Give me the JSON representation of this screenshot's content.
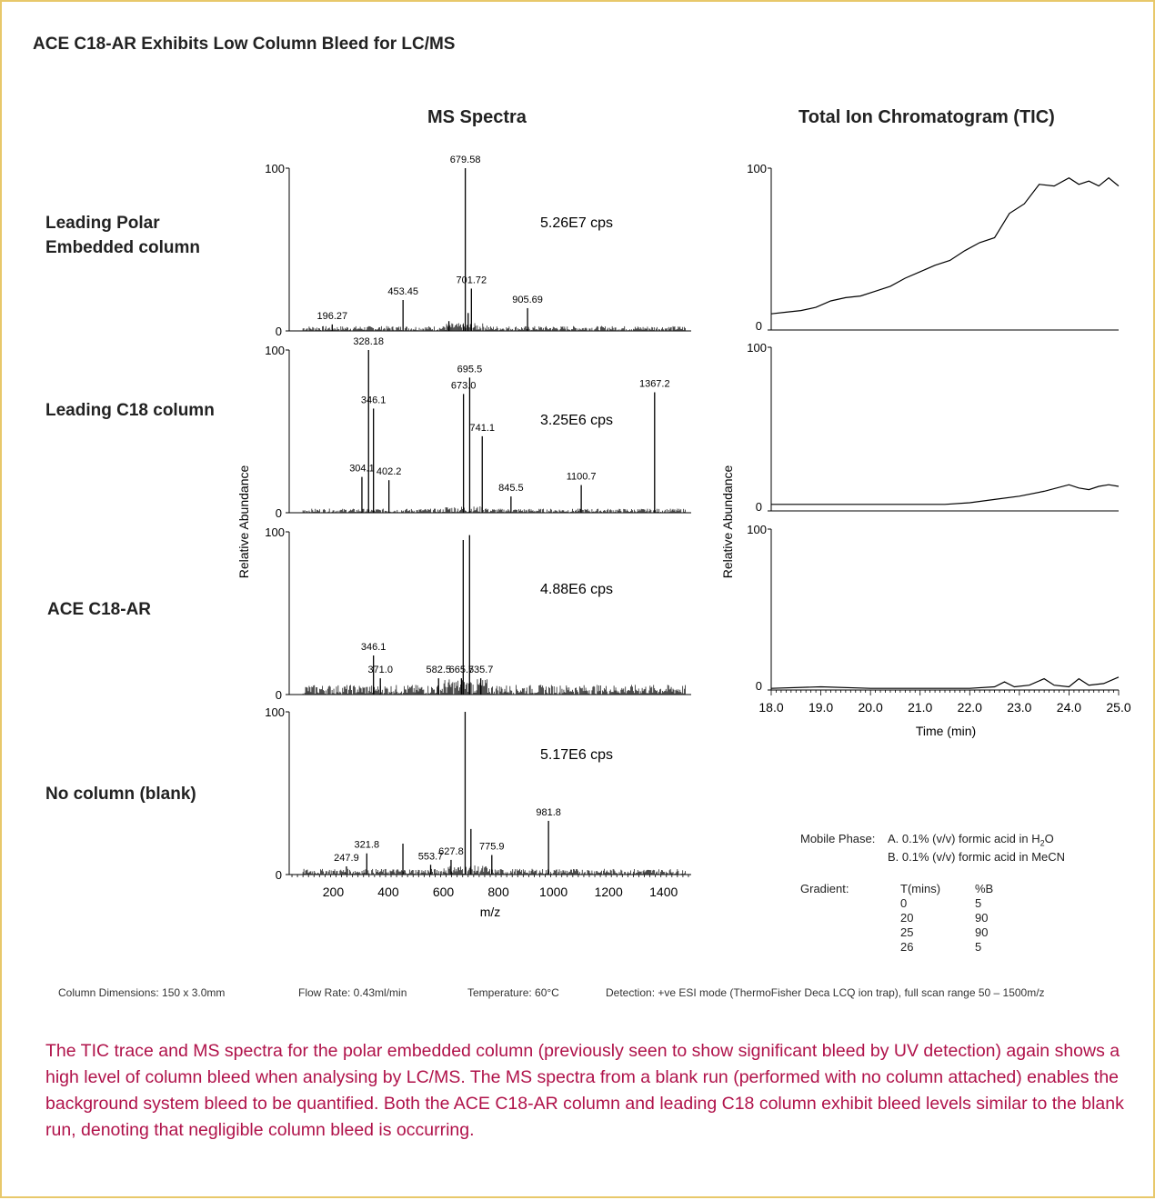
{
  "title": "ACE C18-AR Exhibits Low Column Bleed for LC/MS",
  "columns": {
    "ms": "MS Spectra",
    "tic": "Total Ion Chromatogram (TIC)"
  },
  "rows": [
    {
      "label_lines": [
        "Leading Polar",
        "Embedded column"
      ],
      "cps": "5.26E7 cps"
    },
    {
      "label_lines": [
        "Leading C18 column"
      ],
      "cps": "3.25E6 cps"
    },
    {
      "label_lines": [
        "ACE C18-AR"
      ],
      "cps": "4.88E6 cps"
    },
    {
      "label_lines": [
        "No column (blank)"
      ],
      "cps": "5.17E6 cps"
    }
  ],
  "conditions": {
    "column": "Column Dimensions: 150 x 3.0mm",
    "flow": "Flow Rate: 0.43ml/min",
    "temperature": "Temperature: 60°C",
    "detection": "Detection: +ve ESI mode (ThermoFisher Deca LCQ ion trap), full scan range 50 – 1500m/z"
  },
  "mobile_phase": {
    "label": "Mobile Phase:",
    "a_prefix": "A.  0.1% (v/v) formic acid in H",
    "a_sub": "2",
    "a_suffix": "O",
    "b": "B.  0.1% (v/v) formic acid in MeCN"
  },
  "gradient": {
    "label": "Gradient:",
    "headers": [
      "T(mins)",
      "%B"
    ],
    "rows": [
      [
        "0",
        "5"
      ],
      [
        "20",
        "90"
      ],
      [
        "25",
        "90"
      ],
      [
        "26",
        "5"
      ]
    ]
  },
  "description": "The TIC trace and MS spectra for the polar embedded column (previously seen to show significant bleed by UV detection) again shows a high level of column bleed when analysing by LC/MS.  The MS spectra from a blank run (performed with no column attached) enables the background system bleed to be quantified.  Both the ACE C18-AR column and leading C18 column exhibit bleed levels similar to the blank run, denoting that negligible column bleed is occurring.",
  "chart_data": [
    {
      "type": "bar",
      "title": "MS Spectra",
      "xlabel": "m/z",
      "ylabel": "Relative Abundance",
      "xlim": [
        40,
        1500
      ],
      "ylim": [
        0,
        100
      ],
      "x_ticks": [
        200,
        400,
        600,
        800,
        1000,
        1200,
        1400
      ],
      "y_ticks": [
        0,
        100
      ],
      "panels": [
        {
          "name": "Leading Polar Embedded column",
          "cps": "5.26E7 cps",
          "peaks": [
            {
              "mz": 196.27,
              "y": 4,
              "label": "196.27"
            },
            {
              "mz": 453.45,
              "y": 19,
              "label": "453.45"
            },
            {
              "mz": 620,
              "y": 6
            },
            {
              "mz": 672,
              "y": 4
            },
            {
              "mz": 679.58,
              "y": 100,
              "label": "679.58"
            },
            {
              "mz": 690,
              "y": 11
            },
            {
              "mz": 701.72,
              "y": 26,
              "label": "701.72"
            },
            {
              "mz": 905.69,
              "y": 14,
              "label": "905.69"
            }
          ]
        },
        {
          "name": "Leading C18 column",
          "cps": "3.25E6 cps",
          "peaks": [
            {
              "mz": 304.1,
              "y": 22,
              "label": "304.1"
            },
            {
              "mz": 328.18,
              "y": 100,
              "label": "328.18"
            },
            {
              "mz": 346.1,
              "y": 64,
              "label": "346.1"
            },
            {
              "mz": 402.2,
              "y": 20,
              "label": "402.2"
            },
            {
              "mz": 673.0,
              "y": 73,
              "label": "673.0"
            },
            {
              "mz": 695.5,
              "y": 83,
              "label": "695.5"
            },
            {
              "mz": 741.1,
              "y": 47,
              "label": "741.1"
            },
            {
              "mz": 845.5,
              "y": 10,
              "label": "845.5"
            },
            {
              "mz": 1100.7,
              "y": 17,
              "label": "1100.7"
            },
            {
              "mz": 1367.2,
              "y": 74,
              "label": "1367.2"
            }
          ]
        },
        {
          "name": "ACE C18-AR",
          "cps": "4.88E6 cps",
          "peaks": [
            {
              "mz": 346.1,
              "y": 24,
              "label": "346.1"
            },
            {
              "mz": 371.0,
              "y": 10,
              "label": "371.0"
            },
            {
              "mz": 582.5,
              "y": 10,
              "label": "582.5"
            },
            {
              "mz": 665.5,
              "y": 10,
              "label": "665.5"
            },
            {
              "mz": 672,
              "y": 95
            },
            {
              "mz": 695,
              "y": 98
            },
            {
              "mz": 735.7,
              "y": 10,
              "label": "735.7"
            }
          ]
        },
        {
          "name": "No column (blank)",
          "cps": "5.17E6 cps",
          "peaks": [
            {
              "mz": 247.9,
              "y": 5,
              "label": "247.9"
            },
            {
              "mz": 321.8,
              "y": 13,
              "label": "321.8"
            },
            {
              "mz": 453,
              "y": 19
            },
            {
              "mz": 553.7,
              "y": 6,
              "label": "553.7"
            },
            {
              "mz": 627.8,
              "y": 9,
              "label": "627.8"
            },
            {
              "mz": 679,
              "y": 100
            },
            {
              "mz": 700,
              "y": 28
            },
            {
              "mz": 775.9,
              "y": 12,
              "label": "775.9"
            },
            {
              "mz": 981.8,
              "y": 33,
              "label": "981.8"
            }
          ]
        }
      ]
    },
    {
      "type": "line",
      "title": "Total Ion Chromatogram (TIC)",
      "xlabel": "Time (min)",
      "ylabel": "Relative Abundance",
      "xlim": [
        18,
        25
      ],
      "ylim": [
        0,
        100
      ],
      "x_ticks": [
        18.0,
        19.0,
        20.0,
        21.0,
        22.0,
        23.0,
        24.0,
        25.0
      ],
      "y_ticks": [
        0,
        100
      ],
      "panels": [
        {
          "name": "Leading Polar Embedded column",
          "x": [
            18.0,
            18.3,
            18.6,
            18.9,
            19.2,
            19.5,
            19.8,
            20.1,
            20.4,
            20.7,
            21.0,
            21.3,
            21.6,
            21.9,
            22.2,
            22.5,
            22.8,
            23.1,
            23.4,
            23.7,
            24.0,
            24.2,
            24.4,
            24.6,
            24.8,
            25.0
          ],
          "y": [
            10,
            11,
            12,
            14,
            18,
            20,
            21,
            24,
            27,
            32,
            36,
            40,
            43,
            49,
            54,
            57,
            72,
            78,
            90,
            89,
            94,
            90,
            92,
            89,
            94,
            89
          ]
        },
        {
          "name": "Leading C18 column",
          "x": [
            18.0,
            19.0,
            20.0,
            21.0,
            21.5,
            22.0,
            22.5,
            23.0,
            23.5,
            24.0,
            24.2,
            24.4,
            24.6,
            24.8,
            25.0
          ],
          "y": [
            4,
            4,
            4,
            4,
            4,
            5,
            7,
            9,
            12,
            16,
            14,
            13,
            15,
            16,
            15
          ]
        },
        {
          "name": "ACE C18-AR",
          "x": [
            18.0,
            19.0,
            20.0,
            21.0,
            22.0,
            22.5,
            22.7,
            22.9,
            23.2,
            23.5,
            23.7,
            24.0,
            24.2,
            24.4,
            24.7,
            25.0
          ],
          "y": [
            1,
            2,
            1,
            1,
            1,
            2,
            5,
            2,
            3,
            7,
            3,
            2,
            7,
            3,
            4,
            8
          ]
        }
      ]
    }
  ]
}
